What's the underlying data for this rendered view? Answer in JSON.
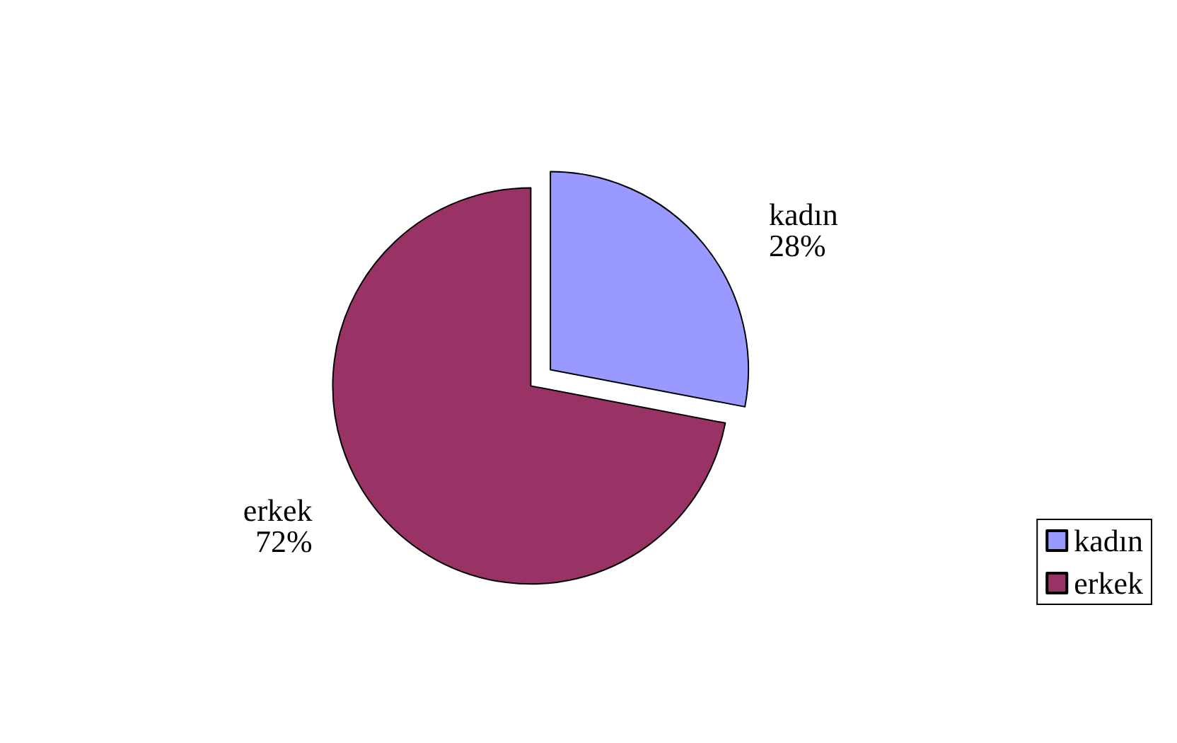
{
  "chart_data": {
    "type": "pie",
    "categories": [
      "kadın",
      "erkek"
    ],
    "values": [
      28,
      72
    ],
    "colors": [
      "#9999ff",
      "#993366"
    ],
    "value_labels": [
      "28%",
      "72%"
    ],
    "legend": "bottom right"
  }
}
